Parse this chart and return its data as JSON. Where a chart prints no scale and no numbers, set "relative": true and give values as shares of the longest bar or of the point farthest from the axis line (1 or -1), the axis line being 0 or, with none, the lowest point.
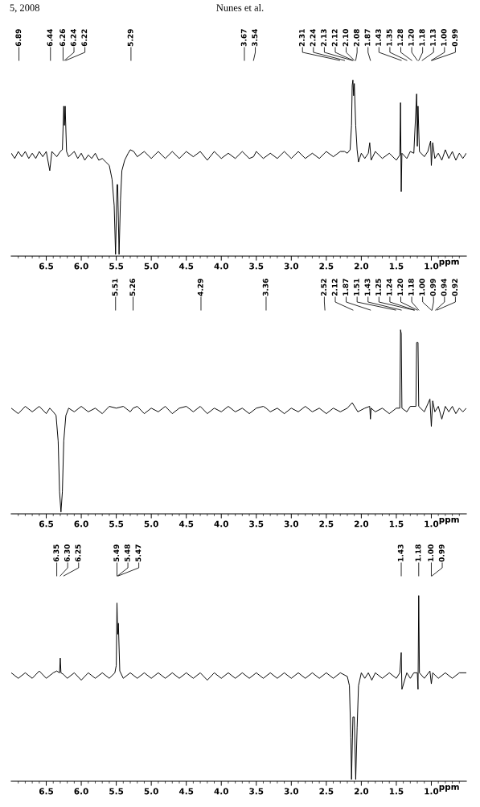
{
  "chart_data": [
    {
      "type": "line",
      "relative": true,
      "xlabel": "ppm",
      "xlim": [
        7.0,
        0.5
      ],
      "xticks": [
        {
          "value": 6.5,
          "label": "6.5"
        },
        {
          "value": 6.0,
          "label": "6.0"
        },
        {
          "value": 5.5,
          "label": "5.5"
        },
        {
          "value": 5.0,
          "label": "5.0"
        },
        {
          "value": 4.5,
          "label": "4.5"
        },
        {
          "value": 4.0,
          "label": "4.0"
        },
        {
          "value": 3.5,
          "label": "3.5"
        },
        {
          "value": 3.0,
          "label": "3.0"
        },
        {
          "value": 2.5,
          "label": "2.5"
        },
        {
          "value": 2.0,
          "label": "2.0"
        },
        {
          "value": 1.5,
          "label": "1.5"
        },
        {
          "value": 1.0,
          "label": "1.0"
        },
        {
          "value": 6.9,
          "label": null
        },
        {
          "value": 6.8,
          "label": null
        },
        {
          "value": 6.7,
          "label": null
        },
        {
          "value": 6.6,
          "label": null
        },
        {
          "value": 6.4,
          "label": null
        },
        {
          "value": 6.3,
          "label": null
        },
        {
          "value": 6.2,
          "label": null
        },
        {
          "value": 6.1,
          "label": null
        },
        {
          "value": 5.9,
          "label": null
        },
        {
          "value": 5.8,
          "label": null
        },
        {
          "value": 5.7,
          "label": null
        },
        {
          "value": 5.6,
          "label": null
        },
        {
          "value": 5.4,
          "label": null
        },
        {
          "value": 5.3,
          "label": null
        },
        {
          "value": 5.2,
          "label": null
        },
        {
          "value": 5.1,
          "label": null
        },
        {
          "value": 4.9,
          "label": null
        },
        {
          "value": 4.8,
          "label": null
        },
        {
          "value": 4.7,
          "label": null
        },
        {
          "value": 4.6,
          "label": null
        },
        {
          "value": 4.4,
          "label": null
        },
        {
          "value": 4.3,
          "label": null
        },
        {
          "value": 4.2,
          "label": null
        },
        {
          "value": 4.1,
          "label": null
        },
        {
          "value": 3.9,
          "label": null
        },
        {
          "value": 3.8,
          "label": null
        },
        {
          "value": 3.7,
          "label": null
        },
        {
          "value": 3.6,
          "label": null
        },
        {
          "value": 3.4,
          "label": null
        },
        {
          "value": 3.3,
          "label": null
        },
        {
          "value": 3.2,
          "label": null
        },
        {
          "value": 3.1,
          "label": null
        },
        {
          "value": 2.9,
          "label": null
        },
        {
          "value": 2.8,
          "label": null
        },
        {
          "value": 2.7,
          "label": null
        },
        {
          "value": 2.6,
          "label": null
        },
        {
          "value": 2.4,
          "label": null
        },
        {
          "value": 2.3,
          "label": null
        },
        {
          "value": 2.2,
          "label": null
        },
        {
          "value": 2.1,
          "label": null
        },
        {
          "value": 1.9,
          "label": null
        },
        {
          "value": 1.8,
          "label": null
        },
        {
          "value": 1.7,
          "label": null
        },
        {
          "value": 1.6,
          "label": null
        },
        {
          "value": 1.4,
          "label": null
        },
        {
          "value": 1.3,
          "label": null
        },
        {
          "value": 1.2,
          "label": null
        },
        {
          "value": 1.1,
          "label": null
        },
        {
          "value": 0.9,
          "label": null
        },
        {
          "value": 0.8,
          "label": null
        },
        {
          "value": 0.7,
          "label": null
        },
        {
          "value": 0.6,
          "label": null
        }
      ],
      "annotations": [
        "5, 2008",
        "Nunes et al.",
        {
          "text": "6.89",
          "x": 6.89
        },
        {
          "text": "6.44",
          "x": 6.44
        },
        {
          "text": "6.26",
          "x": 6.26
        },
        {
          "text": "6.24",
          "x": 6.24
        },
        {
          "text": "6.22",
          "x": 6.22
        },
        {
          "text": "5.29",
          "x": 5.29
        },
        {
          "text": "3.67",
          "x": 3.67
        },
        {
          "text": "3.54",
          "x": 3.54
        },
        {
          "text": "2.31",
          "x": 2.31
        },
        {
          "text": "2.24",
          "x": 2.24
        },
        {
          "text": "2.13",
          "x": 2.13
        },
        {
          "text": "2.12",
          "x": 2.12
        },
        {
          "text": "2.10",
          "x": 2.1
        },
        {
          "text": "2.08",
          "x": 2.08
        },
        {
          "text": "1.87",
          "x": 1.87
        },
        {
          "text": "1.43",
          "x": 1.43
        },
        {
          "text": "1.35",
          "x": 1.35
        },
        {
          "text": "1.28",
          "x": 1.28
        },
        {
          "text": "1.20",
          "x": 1.2
        },
        {
          "text": "1.18",
          "x": 1.18
        },
        {
          "text": "1.13",
          "x": 1.13
        },
        {
          "text": "1.00",
          "x": 1.0
        },
        {
          "text": "0.99",
          "x": 0.99
        }
      ],
      "series": [
        {
          "color": "#000000",
          "x": [
            7.0,
            6.95,
            6.9,
            6.85,
            6.8,
            6.75,
            6.7,
            6.65,
            6.6,
            6.55,
            6.5,
            6.45,
            6.42,
            6.35,
            6.3,
            6.27,
            6.25,
            6.24,
            6.23,
            6.21,
            6.18,
            6.1,
            6.05,
            6.0,
            5.95,
            5.9,
            5.85,
            5.8,
            5.75,
            5.7,
            5.65,
            5.6,
            5.56,
            5.53,
            5.51,
            5.49,
            5.48,
            5.46,
            5.44,
            5.42,
            5.38,
            5.33,
            5.3,
            5.25,
            5.2,
            5.1,
            5.0,
            4.9,
            4.8,
            4.7,
            4.6,
            4.5,
            4.4,
            4.3,
            4.2,
            4.1,
            4.0,
            3.9,
            3.8,
            3.7,
            3.6,
            3.54,
            3.5,
            3.4,
            3.3,
            3.2,
            3.1,
            3.0,
            2.9,
            2.8,
            2.7,
            2.6,
            2.5,
            2.4,
            2.3,
            2.24,
            2.2,
            2.16,
            2.14,
            2.13,
            2.12,
            2.11,
            2.1,
            2.08,
            2.06,
            2.04,
            2.0,
            1.95,
            1.9,
            1.88,
            1.86,
            1.8,
            1.7,
            1.6,
            1.5,
            1.45,
            1.44,
            1.43,
            1.42,
            1.35,
            1.3,
            1.25,
            1.21,
            1.2,
            1.19,
            1.17,
            1.1,
            1.05,
            1.01,
            1.0,
            0.98,
            0.95,
            0.9,
            0.85,
            0.8,
            0.75,
            0.7,
            0.65,
            0.6,
            0.55,
            0.5
          ],
          "values": [
            0.58,
            0.55,
            0.59,
            0.56,
            0.59,
            0.55,
            0.58,
            0.55,
            0.59,
            0.56,
            0.59,
            0.48,
            0.59,
            0.56,
            0.59,
            0.6,
            0.85,
            0.74,
            0.85,
            0.59,
            0.56,
            0.59,
            0.55,
            0.58,
            0.54,
            0.57,
            0.55,
            0.58,
            0.54,
            0.55,
            0.53,
            0.51,
            0.43,
            0.28,
            0,
            0.4,
            0.4,
            0,
            0.31,
            0.48,
            0.54,
            0.58,
            0.6,
            0.59,
            0.56,
            0.59,
            0.55,
            0.59,
            0.55,
            0.59,
            0.55,
            0.59,
            0.56,
            0.59,
            0.54,
            0.59,
            0.55,
            0.58,
            0.55,
            0.59,
            0.55,
            0.56,
            0.59,
            0.55,
            0.58,
            0.55,
            0.59,
            0.55,
            0.59,
            0.55,
            0.58,
            0.55,
            0.59,
            0.56,
            0.59,
            0.59,
            0.58,
            0.6,
            0.74,
            0.97,
            1,
            0.91,
            0.98,
            0.74,
            0.6,
            0.53,
            0.58,
            0.55,
            0.58,
            0.64,
            0.54,
            0.59,
            0.55,
            0.58,
            0.54,
            0.57,
            0.87,
            0.36,
            0.58,
            0.55,
            0.59,
            0.58,
            0.92,
            0.62,
            0.85,
            0.59,
            0.56,
            0.59,
            0.65,
            0.51,
            0.64,
            0.55,
            0.58,
            0.54,
            0.6,
            0.55,
            0.59,
            0.54,
            0.58,
            0.55,
            0.58
          ]
        }
      ]
    },
    {
      "type": "line",
      "relative": true,
      "xlabel": "ppm",
      "xlim": [
        7.0,
        0.5
      ],
      "xticks": [
        {
          "value": 6.5,
          "label": "6.5"
        },
        {
          "value": 6.0,
          "label": "6.0"
        },
        {
          "value": 5.5,
          "label": "5.5"
        },
        {
          "value": 5.0,
          "label": "5.0"
        },
        {
          "value": 4.5,
          "label": "4.5"
        },
        {
          "value": 4.0,
          "label": "4.0"
        },
        {
          "value": 3.5,
          "label": "3.5"
        },
        {
          "value": 3.0,
          "label": "3.0"
        },
        {
          "value": 2.5,
          "label": "2.5"
        },
        {
          "value": 2.0,
          "label": "2.0"
        },
        {
          "value": 1.5,
          "label": "1.5"
        },
        {
          "value": 1.0,
          "label": "1.0"
        },
        {
          "value": 6.9,
          "label": null
        },
        {
          "value": 6.8,
          "label": null
        },
        {
          "value": 6.7,
          "label": null
        },
        {
          "value": 6.6,
          "label": null
        },
        {
          "value": 6.4,
          "label": null
        },
        {
          "value": 6.3,
          "label": null
        },
        {
          "value": 6.2,
          "label": null
        },
        {
          "value": 6.1,
          "label": null
        },
        {
          "value": 5.9,
          "label": null
        },
        {
          "value": 5.8,
          "label": null
        },
        {
          "value": 5.7,
          "label": null
        },
        {
          "value": 5.6,
          "label": null
        },
        {
          "value": 5.4,
          "label": null
        },
        {
          "value": 5.3,
          "label": null
        },
        {
          "value": 5.2,
          "label": null
        },
        {
          "value": 5.1,
          "label": null
        },
        {
          "value": 4.9,
          "label": null
        },
        {
          "value": 4.8,
          "label": null
        },
        {
          "value": 4.7,
          "label": null
        },
        {
          "value": 4.6,
          "label": null
        },
        {
          "value": 4.4,
          "label": null
        },
        {
          "value": 4.3,
          "label": null
        },
        {
          "value": 4.2,
          "label": null
        },
        {
          "value": 4.1,
          "label": null
        },
        {
          "value": 3.9,
          "label": null
        },
        {
          "value": 3.8,
          "label": null
        },
        {
          "value": 3.7,
          "label": null
        },
        {
          "value": 3.6,
          "label": null
        },
        {
          "value": 3.4,
          "label": null
        },
        {
          "value": 3.3,
          "label": null
        },
        {
          "value": 3.2,
          "label": null
        },
        {
          "value": 3.1,
          "label": null
        },
        {
          "value": 2.9,
          "label": null
        },
        {
          "value": 2.8,
          "label": null
        },
        {
          "value": 2.7,
          "label": null
        },
        {
          "value": 2.6,
          "label": null
        },
        {
          "value": 2.4,
          "label": null
        },
        {
          "value": 2.3,
          "label": null
        },
        {
          "value": 2.2,
          "label": null
        },
        {
          "value": 2.1,
          "label": null
        },
        {
          "value": 1.9,
          "label": null
        },
        {
          "value": 1.8,
          "label": null
        },
        {
          "value": 1.7,
          "label": null
        },
        {
          "value": 1.6,
          "label": null
        },
        {
          "value": 1.4,
          "label": null
        },
        {
          "value": 1.3,
          "label": null
        },
        {
          "value": 1.2,
          "label": null
        },
        {
          "value": 1.1,
          "label": null
        },
        {
          "value": 0.9,
          "label": null
        },
        {
          "value": 0.8,
          "label": null
        },
        {
          "value": 0.7,
          "label": null
        },
        {
          "value": 0.6,
          "label": null
        }
      ],
      "annotations": [
        {
          "text": "5.51",
          "x": 5.51
        },
        {
          "text": "5.26",
          "x": 5.26
        },
        {
          "text": "4.29",
          "x": 4.29
        },
        {
          "text": "3.36",
          "x": 3.36
        },
        {
          "text": "2.52",
          "x": 2.52
        },
        {
          "text": "2.12",
          "x": 2.12
        },
        {
          "text": "1.87",
          "x": 1.87
        },
        {
          "text": "1.51",
          "x": 1.51
        },
        {
          "text": "1.43",
          "x": 1.43
        },
        {
          "text": "1.25",
          "x": 1.25
        },
        {
          "text": "1.24",
          "x": 1.24
        },
        {
          "text": "1.20",
          "x": 1.2
        },
        {
          "text": "1.18",
          "x": 1.18
        },
        {
          "text": "1.00",
          "x": 1.0
        },
        {
          "text": "0.99",
          "x": 0.99
        },
        {
          "text": "0.94",
          "x": 0.94
        },
        {
          "text": "0.92",
          "x": 0.92
        }
      ],
      "series": [
        {
          "color": "#000000",
          "x": [
            7.0,
            6.9,
            6.8,
            6.7,
            6.6,
            6.5,
            6.45,
            6.4,
            6.36,
            6.33,
            6.31,
            6.29,
            6.27,
            6.25,
            6.22,
            6.18,
            6.1,
            6.0,
            5.9,
            5.8,
            5.7,
            5.6,
            5.5,
            5.4,
            5.3,
            5.26,
            5.2,
            5.1,
            5.0,
            4.9,
            4.8,
            4.7,
            4.6,
            4.5,
            4.4,
            4.3,
            4.2,
            4.1,
            4.0,
            3.9,
            3.8,
            3.7,
            3.6,
            3.5,
            3.4,
            3.36,
            3.3,
            3.2,
            3.1,
            3.0,
            2.9,
            2.8,
            2.7,
            2.6,
            2.5,
            2.4,
            2.3,
            2.2,
            2.13,
            2.05,
            1.95,
            1.88,
            1.87,
            1.86,
            1.8,
            1.7,
            1.6,
            1.5,
            1.45,
            1.44,
            1.43,
            1.42,
            1.35,
            1.3,
            1.22,
            1.21,
            1.19,
            1.18,
            1.1,
            1.02,
            1.0,
            0.98,
            0.95,
            0.9,
            0.85,
            0.8,
            0.75,
            0.7,
            0.65,
            0.6,
            0.55,
            0.5
          ],
          "values": [
            0.57,
            0.54,
            0.58,
            0.55,
            0.58,
            0.54,
            0.57,
            0.55,
            0.53,
            0.39,
            0.11,
            0,
            0.11,
            0.39,
            0.53,
            0.57,
            0.55,
            0.58,
            0.55,
            0.57,
            0.54,
            0.58,
            0.57,
            0.58,
            0.55,
            0.57,
            0.58,
            0.54,
            0.57,
            0.55,
            0.58,
            0.54,
            0.57,
            0.58,
            0.55,
            0.58,
            0.54,
            0.57,
            0.55,
            0.58,
            0.55,
            0.57,
            0.54,
            0.57,
            0.58,
            0.57,
            0.55,
            0.57,
            0.54,
            0.57,
            0.55,
            0.58,
            0.55,
            0.57,
            0.54,
            0.57,
            0.55,
            0.57,
            0.6,
            0.55,
            0.57,
            0.58,
            0.51,
            0.57,
            0.55,
            0.57,
            0.54,
            0.57,
            0.57,
            1,
            0.98,
            0.57,
            0.55,
            0.58,
            0.58,
            0.93,
            0.93,
            0.58,
            0.55,
            0.62,
            0.47,
            0.61,
            0.55,
            0.58,
            0.51,
            0.58,
            0.55,
            0.58,
            0.54,
            0.57,
            0.55,
            0.57
          ]
        }
      ]
    },
    {
      "type": "line",
      "relative": true,
      "xlabel": "ppm",
      "xlim": [
        7.0,
        0.5
      ],
      "xticks": [
        {
          "value": 6.5,
          "label": "6.5"
        },
        {
          "value": 6.0,
          "label": "6.0"
        },
        {
          "value": 5.5,
          "label": "5.5"
        },
        {
          "value": 5.0,
          "label": "5.0"
        },
        {
          "value": 4.5,
          "label": "4.5"
        },
        {
          "value": 4.0,
          "label": "4.0"
        },
        {
          "value": 3.5,
          "label": "3.5"
        },
        {
          "value": 3.0,
          "label": "3.0"
        },
        {
          "value": 2.5,
          "label": "2.5"
        },
        {
          "value": 2.0,
          "label": "2.0"
        },
        {
          "value": 1.5,
          "label": "1.5"
        },
        {
          "value": 1.0,
          "label": "1.0"
        },
        {
          "value": 6.9,
          "label": null
        },
        {
          "value": 6.8,
          "label": null
        },
        {
          "value": 6.7,
          "label": null
        },
        {
          "value": 6.6,
          "label": null
        },
        {
          "value": 6.4,
          "label": null
        },
        {
          "value": 6.3,
          "label": null
        },
        {
          "value": 6.2,
          "label": null
        },
        {
          "value": 6.1,
          "label": null
        },
        {
          "value": 5.9,
          "label": null
        },
        {
          "value": 5.8,
          "label": null
        },
        {
          "value": 5.7,
          "label": null
        },
        {
          "value": 5.6,
          "label": null
        },
        {
          "value": 5.4,
          "label": null
        },
        {
          "value": 5.3,
          "label": null
        },
        {
          "value": 5.2,
          "label": null
        },
        {
          "value": 5.1,
          "label": null
        },
        {
          "value": 4.9,
          "label": null
        },
        {
          "value": 4.8,
          "label": null
        },
        {
          "value": 4.7,
          "label": null
        },
        {
          "value": 4.6,
          "label": null
        },
        {
          "value": 4.4,
          "label": null
        },
        {
          "value": 4.3,
          "label": null
        },
        {
          "value": 4.2,
          "label": null
        },
        {
          "value": 4.1,
          "label": null
        },
        {
          "value": 3.9,
          "label": null
        },
        {
          "value": 3.8,
          "label": null
        },
        {
          "value": 3.7,
          "label": null
        },
        {
          "value": 3.6,
          "label": null
        },
        {
          "value": 3.4,
          "label": null
        },
        {
          "value": 3.3,
          "label": null
        },
        {
          "value": 3.2,
          "label": null
        },
        {
          "value": 3.1,
          "label": null
        },
        {
          "value": 2.9,
          "label": null
        },
        {
          "value": 2.8,
          "label": null
        },
        {
          "value": 2.7,
          "label": null
        },
        {
          "value": 2.6,
          "label": null
        },
        {
          "value": 2.4,
          "label": null
        },
        {
          "value": 2.3,
          "label": null
        },
        {
          "value": 2.2,
          "label": null
        },
        {
          "value": 2.1,
          "label": null
        },
        {
          "value": 1.9,
          "label": null
        },
        {
          "value": 1.8,
          "label": null
        },
        {
          "value": 1.7,
          "label": null
        },
        {
          "value": 1.6,
          "label": null
        },
        {
          "value": 1.4,
          "label": null
        },
        {
          "value": 1.3,
          "label": null
        },
        {
          "value": 1.2,
          "label": null
        },
        {
          "value": 1.1,
          "label": null
        },
        {
          "value": 0.9,
          "label": null
        },
        {
          "value": 0.8,
          "label": null
        },
        {
          "value": 0.7,
          "label": null
        },
        {
          "value": 0.6,
          "label": null
        }
      ],
      "annotations": [
        {
          "text": "6.35",
          "x": 6.35
        },
        {
          "text": "6.30",
          "x": 6.3
        },
        {
          "text": "6.25",
          "x": 6.25
        },
        {
          "text": "5.49",
          "x": 5.49
        },
        {
          "text": "5.48",
          "x": 5.48
        },
        {
          "text": "5.47",
          "x": 5.47
        },
        {
          "text": "1.43",
          "x": 1.43
        },
        {
          "text": "1.18",
          "x": 1.18
        },
        {
          "text": "1.00",
          "x": 1.0
        },
        {
          "text": "0.99",
          "x": 0.99
        }
      ],
      "series": [
        {
          "color": "#000000",
          "x": [
            7.0,
            6.9,
            6.8,
            6.7,
            6.6,
            6.5,
            6.4,
            6.35,
            6.31,
            6.3,
            6.29,
            6.25,
            6.2,
            6.1,
            6.0,
            5.9,
            5.8,
            5.7,
            5.6,
            5.52,
            5.5,
            5.49,
            5.48,
            5.47,
            5.45,
            5.4,
            5.3,
            5.2,
            5.1,
            5.0,
            4.9,
            4.8,
            4.7,
            4.6,
            4.5,
            4.4,
            4.3,
            4.2,
            4.1,
            4.0,
            3.9,
            3.8,
            3.7,
            3.6,
            3.5,
            3.4,
            3.3,
            3.2,
            3.1,
            3.0,
            2.9,
            2.8,
            2.7,
            2.6,
            2.5,
            2.4,
            2.3,
            2.2,
            2.17,
            2.15,
            2.14,
            2.12,
            2.1,
            2.08,
            2.06,
            2.04,
            2.0,
            1.95,
            1.9,
            1.85,
            1.8,
            1.7,
            1.6,
            1.5,
            1.45,
            1.43,
            1.42,
            1.35,
            1.3,
            1.25,
            1.2,
            1.19,
            1.18,
            1.17,
            1.1,
            1.02,
            1.0,
            0.98,
            0.9,
            0.8,
            0.7,
            0.6,
            0.5
          ],
          "values": [
            0.58,
            0.55,
            0.58,
            0.55,
            0.59,
            0.55,
            0.58,
            0.59,
            0.58,
            0.66,
            0.58,
            0.57,
            0.55,
            0.58,
            0.54,
            0.58,
            0.55,
            0.58,
            0.55,
            0.58,
            0.62,
            0.96,
            0.79,
            0.85,
            0.59,
            0.55,
            0.58,
            0.55,
            0.58,
            0.55,
            0.58,
            0.55,
            0.58,
            0.55,
            0.58,
            0.55,
            0.58,
            0.54,
            0.58,
            0.55,
            0.58,
            0.55,
            0.58,
            0.55,
            0.58,
            0.55,
            0.58,
            0.55,
            0.58,
            0.55,
            0.58,
            0.55,
            0.58,
            0.55,
            0.58,
            0.55,
            0.58,
            0.56,
            0.51,
            0.23,
            0,
            0.34,
            0.34,
            0,
            0.28,
            0.51,
            0.58,
            0.55,
            0.58,
            0.54,
            0.58,
            0.55,
            0.58,
            0.55,
            0.58,
            0.69,
            0.49,
            0.58,
            0.55,
            0.58,
            0.58,
            0.49,
            1,
            0.58,
            0.55,
            0.59,
            0.52,
            0.58,
            0.55,
            0.58,
            0.55,
            0.58,
            0.58
          ]
        }
      ]
    }
  ]
}
